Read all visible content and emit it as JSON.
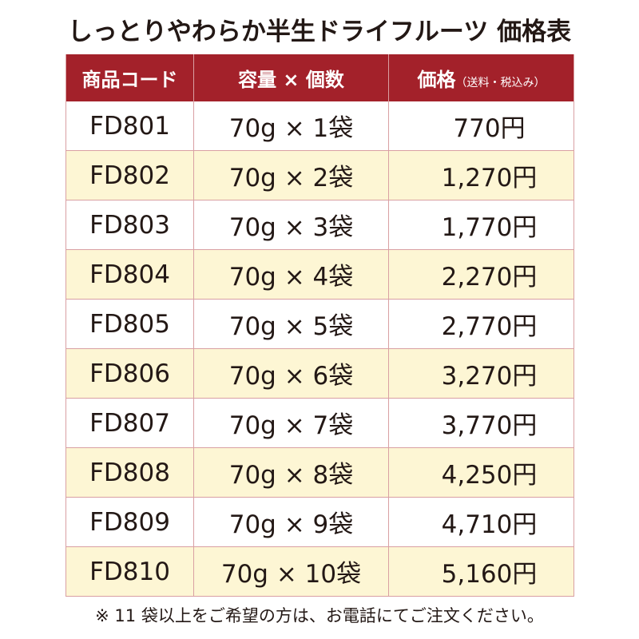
{
  "title": "しっとりやわらか半生ドライフルーツ 価格表",
  "table": {
    "header": [
      "商品コード",
      "容量 × 個数",
      "価格"
    ],
    "header_note": "（送料・税込み）",
    "rows": [
      [
        "FD801",
        "70g × 1袋",
        "770円"
      ],
      [
        "FD802",
        "70g × 2袋",
        "1,270円"
      ],
      [
        "FD803",
        "70g × 3袋",
        "1,770円"
      ],
      [
        "FD804",
        "70g × 4袋",
        "2,270円"
      ],
      [
        "FD805",
        "70g × 5袋",
        "2,770円"
      ],
      [
        "FD806",
        "70g × 6袋",
        "3,270円"
      ],
      [
        "FD807",
        "70g × 7袋",
        "3,770円"
      ],
      [
        "FD808",
        "70g × 8袋",
        "4,250円"
      ],
      [
        "FD809",
        "70g × 9袋",
        "4,710円"
      ],
      [
        "FD810",
        "70g × 10袋",
        "5,160円"
      ]
    ]
  },
  "footnote": "※ 11 袋以上をご希望の方は、お電話にてご注文ください。"
}
